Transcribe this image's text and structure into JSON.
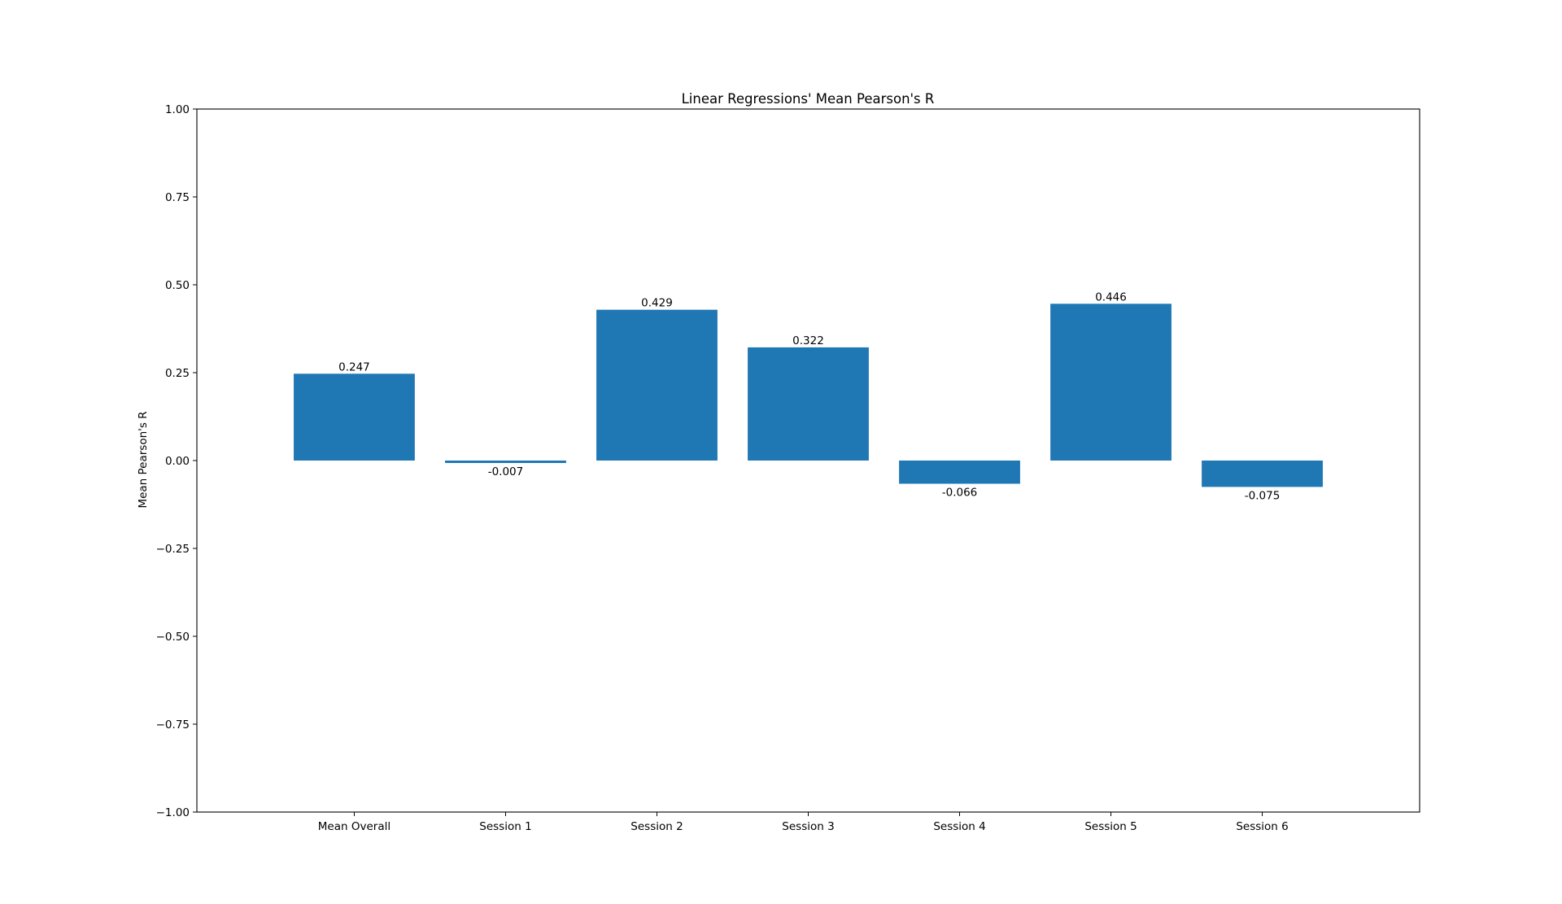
{
  "chart_data": {
    "type": "bar",
    "title": "Linear Regressions' Mean Pearson's R",
    "xlabel": "",
    "ylabel": "Mean Pearson's R",
    "categories": [
      "Mean Overall",
      "Session 1",
      "Session 2",
      "Session 3",
      "Session 4",
      "Session 5",
      "Session 6"
    ],
    "values": [
      0.247,
      -0.007,
      0.429,
      0.322,
      -0.066,
      0.446,
      -0.075
    ],
    "bar_labels": [
      "0.247",
      "-0.007",
      "0.429",
      "0.322",
      "-0.066",
      "0.446",
      "-0.075"
    ],
    "ylim": [
      -1.0,
      1.0
    ],
    "yticks": [
      -1.0,
      -0.75,
      -0.5,
      -0.25,
      0.0,
      0.25,
      0.5,
      0.75,
      1.0
    ],
    "ytick_labels": [
      "−1.00",
      "−0.75",
      "−0.50",
      "−0.25",
      "0.00",
      "0.25",
      "0.50",
      "0.75",
      "1.00"
    ],
    "grid": false,
    "legend": false,
    "bar_color": "#1f77b4"
  }
}
